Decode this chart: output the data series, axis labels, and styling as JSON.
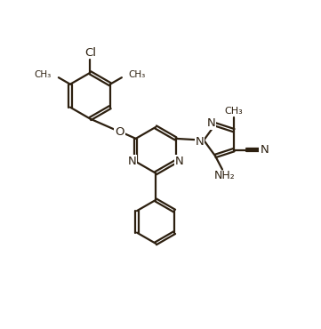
{
  "bg_color": "#ffffff",
  "line_color": "#2d2010",
  "line_width": 1.6,
  "figsize": [
    3.61,
    3.7
  ],
  "dpi": 100,
  "font_size": 9.5,
  "font_color": "#2d2010",
  "xlim": [
    0,
    10
  ],
  "ylim": [
    0,
    10
  ]
}
